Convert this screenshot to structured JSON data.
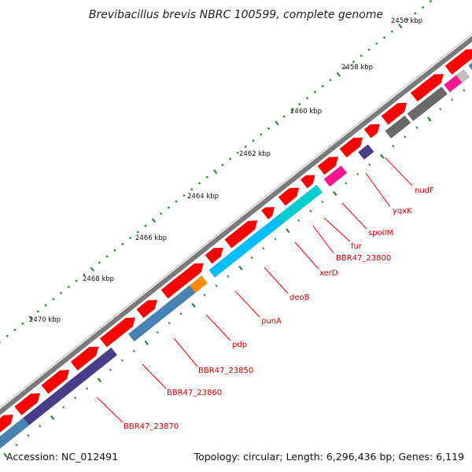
{
  "title": "Brevibacillus brevis NBRC 100599, complete genome",
  "footer": {
    "accession": "Accession: NC_012491",
    "summary": "Topology: circular; Length: 6,296,436 bp; Genes: 6,119"
  },
  "ticks": [
    {
      "label": "2456 kbp"
    },
    {
      "label": "2458 kbp"
    },
    {
      "label": "2460 kbp"
    },
    {
      "label": "2462 kbp"
    },
    {
      "label": "2464 kbp"
    },
    {
      "label": "2466 kbp"
    },
    {
      "label": "2468 kbp"
    },
    {
      "label": "2470 kbp"
    }
  ],
  "gene_labels": [
    {
      "name": "nudF"
    },
    {
      "name": "yqxK"
    },
    {
      "name": "spoIIM"
    },
    {
      "name": "fur"
    },
    {
      "name": "BBR47_23800"
    },
    {
      "name": "xerD"
    },
    {
      "name": "deoB"
    },
    {
      "name": "punA"
    },
    {
      "name": "pdp"
    },
    {
      "name": "BBR47_23850"
    },
    {
      "name": "BBR47_23860"
    },
    {
      "name": "BBR47_23870"
    }
  ],
  "colors": {
    "backbone": "#7a7a7a",
    "forward_gene": "#ff0000",
    "tick_major": "#2e7d32",
    "tick_minor": "#1b8a1b",
    "label_red": "#cc0000",
    "steelblue": "#4682b4",
    "darkslateblue": "#483d8b",
    "deepskyblue": "#00bfff",
    "darkturquoise": "#00ced1",
    "deeppink": "#ff1493",
    "dimgray": "#696969",
    "orange": "#ff8c00"
  }
}
